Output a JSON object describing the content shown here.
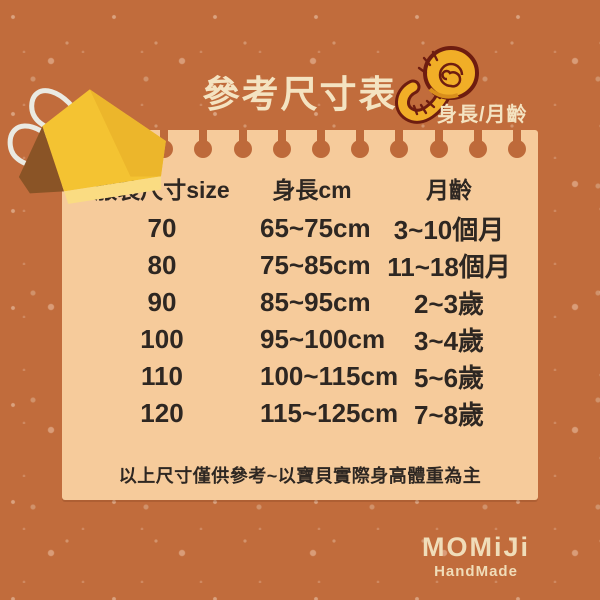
{
  "title": "參考尺寸表",
  "subtitle": "身長/月齡",
  "chart_data": {
    "type": "table",
    "title": "參考尺寸表",
    "columns": [
      "服裝尺寸size",
      "身長cm",
      "月齡"
    ],
    "rows": [
      [
        "70",
        "65~75cm",
        "3~10個月"
      ],
      [
        "80",
        "75~85cm",
        "11~18個月"
      ],
      [
        "90",
        "85~95cm",
        "2~3歲"
      ],
      [
        "100",
        "95~100cm",
        "3~4歲"
      ],
      [
        "110",
        "100~115cm",
        "5~6歲"
      ],
      [
        "120",
        "115~125cm",
        "7~8歲"
      ]
    ],
    "note": "以上尺寸僅供參考~以寶貝實際身高體重為主"
  },
  "brand": {
    "name": "MOMiJi",
    "tagline": "HandMade"
  },
  "icons": {
    "tape": "measuring-tape-icon",
    "clip": "binder-clip-icon"
  },
  "colors": {
    "background": "#C16C3C",
    "card": "#F6CB9B",
    "tab": "#BE6A3A",
    "ink": "#2E2722",
    "cream": "#F4E3C1",
    "gold": "#F1AE27",
    "gold_dark": "#6E1D10",
    "clip_yellow": "#F4C332"
  },
  "layout": {
    "ring_tab_count": 11
  }
}
